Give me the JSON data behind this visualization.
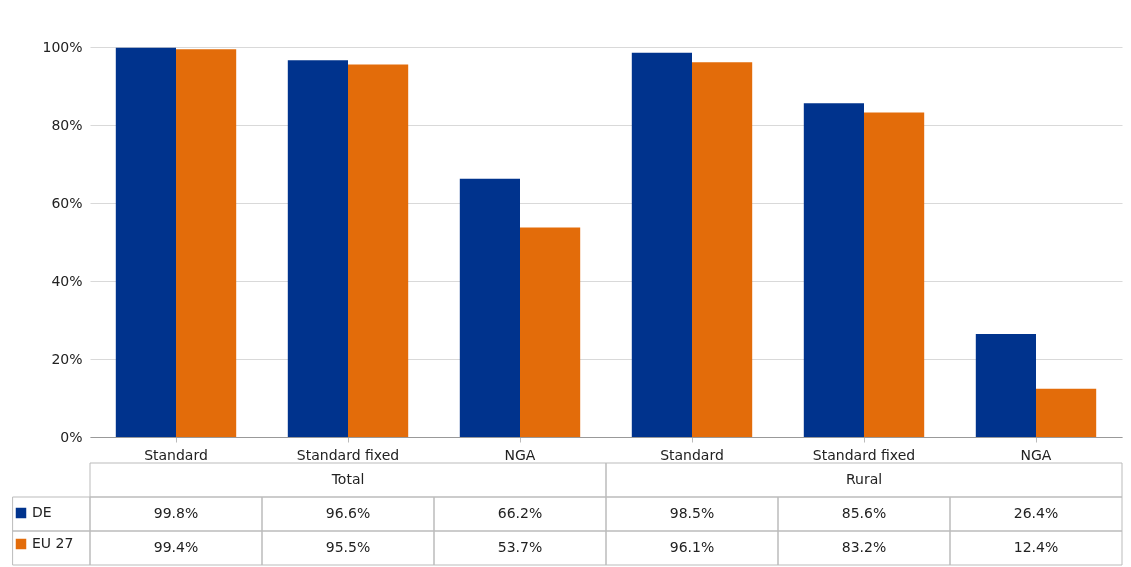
{
  "chart_data": {
    "type": "bar",
    "categories": [
      "Standard",
      "Standard fixed",
      "NGA",
      "Standard",
      "Standard fixed",
      "NGA"
    ],
    "annotations": [
      "Total",
      "Rural"
    ],
    "series": [
      {
        "name": "DE",
        "color": "#00338d",
        "values": [
          99.8,
          96.6,
          66.2,
          98.5,
          85.6,
          26.4
        ],
        "value_labels": [
          "99.8%",
          "96.6%",
          "66.2%",
          "98.5%",
          "85.6%",
          "26.4%"
        ]
      },
      {
        "name": "EU 27",
        "color": "#e36c0a",
        "values": [
          99.4,
          95.5,
          53.7,
          96.1,
          83.2,
          12.4
        ],
        "value_labels": [
          "99.4%",
          "95.5%",
          "53.7%",
          "96.1%",
          "83.2%",
          "12.4%"
        ]
      }
    ],
    "ylim": [
      0,
      100
    ],
    "yticks": [
      {
        "value": 0,
        "label": "0%"
      },
      {
        "value": 20,
        "label": "20%"
      },
      {
        "value": 40,
        "label": "40%"
      },
      {
        "value": 60,
        "label": "60%"
      },
      {
        "value": 80,
        "label": "80%"
      },
      {
        "value": 100,
        "label": "100%"
      }
    ],
    "grid": "y",
    "legend": "bottom"
  }
}
